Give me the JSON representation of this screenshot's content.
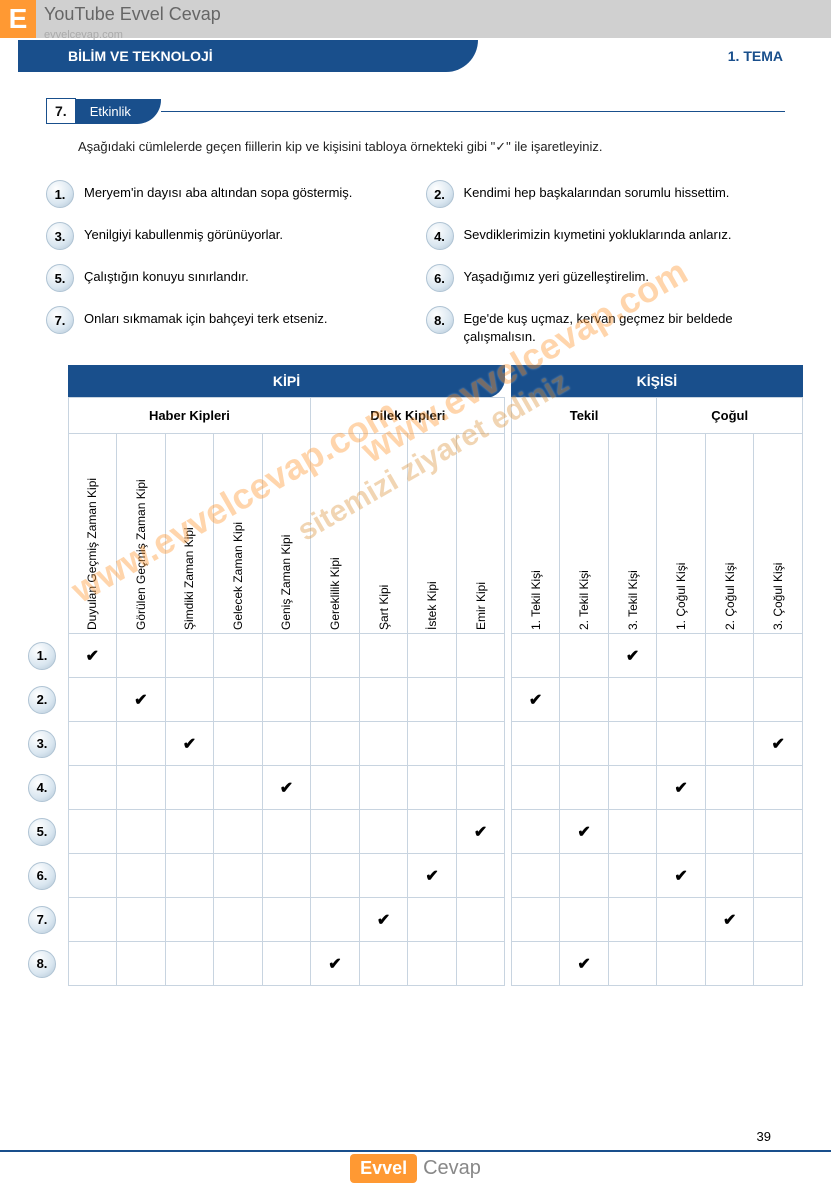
{
  "watermark": {
    "badge_letter": "E",
    "youtube_text": "YouTube Evvel Cevap",
    "url": "evvelcevap.com",
    "diag1": "www.evvelcevap.com",
    "diag2": "sitemizi ziyaret ediniz"
  },
  "header": {
    "section_title": "BİLİM VE TEKNOLOJİ",
    "tema_label": "1. TEMA"
  },
  "activity": {
    "number": "7.",
    "label": "Etkinlik"
  },
  "instruction": "Aşağıdaki cümlelerde geçen fiillerin kip ve kişisini tabloya örnekteki gibi \"✓\" ile işaretleyiniz.",
  "sentences": [
    {
      "n": "1.",
      "t": "Meryem'in dayısı aba altından sopa göstermiş."
    },
    {
      "n": "2.",
      "t": "Kendimi hep başkalarından sorumlu hissettim."
    },
    {
      "n": "3.",
      "t": "Yenilgiyi kabullenmiş görünüyorlar."
    },
    {
      "n": "4.",
      "t": "Sevdiklerimizin kıymetini yokluklarında anlarız."
    },
    {
      "n": "5.",
      "t": "Çalıştığın konuyu sınırlandır."
    },
    {
      "n": "6.",
      "t": "Yaşadığımız yeri güzelleştirelim."
    },
    {
      "n": "7.",
      "t": "Onları sıkmamak için bahçeyi terk etseniz."
    },
    {
      "n": "8.",
      "t": "Ege'de kuş uçmaz, kervan geçmez bir beldede çalışmalısın."
    }
  ],
  "table": {
    "main_headers": {
      "kipi": "KİPİ",
      "kisisi": "KİŞİSİ"
    },
    "sub_headers": {
      "haber": "Haber Kipleri",
      "dilek": "Dilek Kipleri",
      "tekil": "Tekil",
      "cogul": "Çoğul"
    },
    "columns": [
      "Duyulan Geçmiş Zaman Kipi",
      "Görülen Geçmiş Zaman Kipi",
      "Şimdiki Zaman Kipi",
      "Gelecek Zaman Kipi",
      "Geniş Zaman Kipi",
      "Gereklilik Kipi",
      "Şart Kipi",
      "İstek Kipi",
      "Emir Kipi",
      "1. Tekil Kişi",
      "2. Tekil Kişi",
      "3. Tekil Kişi",
      "1. Çoğul Kişi",
      "2. Çoğul Kişi",
      "3. Çoğul Kişi"
    ],
    "rows": [
      {
        "n": "1.",
        "checks": [
          0,
          11
        ]
      },
      {
        "n": "2.",
        "checks": [
          1,
          9
        ]
      },
      {
        "n": "3.",
        "checks": [
          2,
          14
        ]
      },
      {
        "n": "4.",
        "checks": [
          4,
          12
        ]
      },
      {
        "n": "5.",
        "checks": [
          8,
          10
        ]
      },
      {
        "n": "6.",
        "checks": [
          7,
          12
        ]
      },
      {
        "n": "7.",
        "checks": [
          6,
          13
        ]
      },
      {
        "n": "8.",
        "checks": [
          5,
          10
        ]
      }
    ],
    "check_glyph": "✔"
  },
  "page_number": "39",
  "footer": {
    "evvel": "Evvel",
    "cevap": "Cevap"
  },
  "colors": {
    "primary": "#194f8c",
    "orange": "#ff9933",
    "grid": "#c8d4e0",
    "text": "#222"
  }
}
